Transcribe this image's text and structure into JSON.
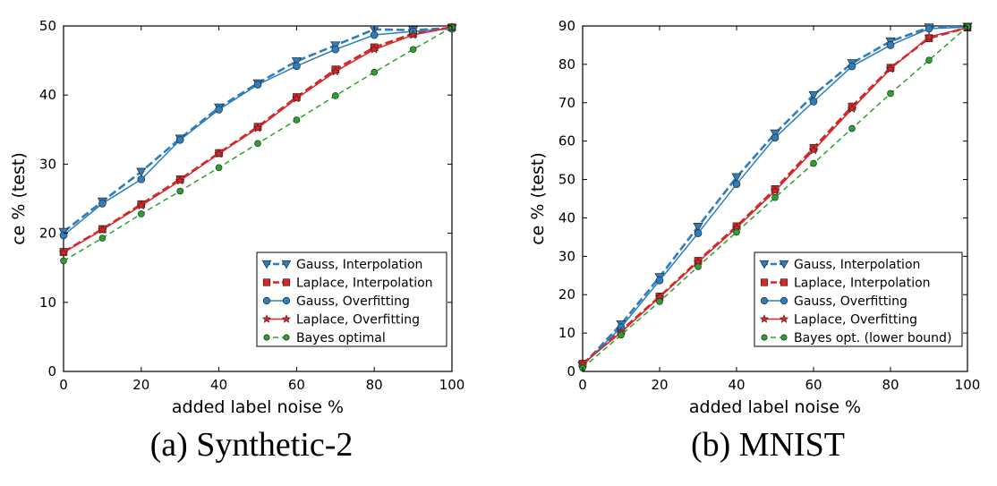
{
  "chart_data": [
    {
      "type": "line",
      "xlabel": "added label noise %",
      "ylabel": "ce % (test)",
      "caption": "(a) Synthetic-2",
      "xlim": [
        0,
        100
      ],
      "ylim": [
        0,
        50
      ],
      "xticks": [
        "0",
        "20",
        "40",
        "60",
        "80",
        "100"
      ],
      "yticks": [
        "0",
        "10",
        "20",
        "30",
        "40",
        "50"
      ],
      "grid": false,
      "legend_position": "lower-right",
      "x": [
        0,
        10,
        20,
        30,
        40,
        50,
        60,
        70,
        80,
        90,
        100
      ],
      "series": [
        {
          "name": "Gauss, Interpolation",
          "color": "#2f7ebc",
          "marker": "triangle-down",
          "dash": "dashed",
          "values": [
            20.2,
            24.6,
            28.9,
            33.7,
            38.2,
            41.7,
            44.9,
            47.2,
            49.5,
            49.4,
            49.7
          ]
        },
        {
          "name": "Laplace, Interpolation",
          "color": "#d62728",
          "marker": "square",
          "dash": "dashed",
          "values": [
            17.3,
            20.6,
            24.2,
            27.8,
            31.6,
            35.4,
            39.7,
            43.7,
            46.9,
            48.9,
            49.8
          ]
        },
        {
          "name": "Gauss, Overfitting",
          "color": "#2f7ebc",
          "marker": "circle",
          "dash": "solid",
          "values": [
            19.7,
            24.3,
            27.8,
            33.5,
            37.9,
            41.5,
            44.2,
            46.6,
            48.7,
            49.2,
            49.6
          ]
        },
        {
          "name": "Laplace, Overfitting",
          "color": "#d62728",
          "marker": "star",
          "dash": "solid",
          "values": [
            17.2,
            20.5,
            24.0,
            27.6,
            31.5,
            35.2,
            39.5,
            43.4,
            46.6,
            48.7,
            49.8
          ]
        },
        {
          "name": "Bayes optimal",
          "color": "#2ca02c",
          "marker": "circle",
          "dash": "dashed",
          "values": [
            16.0,
            19.3,
            22.8,
            26.1,
            29.5,
            33.0,
            36.4,
            39.9,
            43.3,
            46.6,
            49.8
          ]
        }
      ]
    },
    {
      "type": "line",
      "xlabel": "added label noise %",
      "ylabel": "ce % (test)",
      "caption": "(b) MNIST",
      "xlim": [
        0,
        100
      ],
      "ylim": [
        0,
        90
      ],
      "xticks": [
        "0",
        "20",
        "40",
        "60",
        "80",
        "100"
      ],
      "yticks": [
        "0",
        "10",
        "20",
        "30",
        "40",
        "50",
        "60",
        "70",
        "80",
        "90"
      ],
      "grid": false,
      "legend_position": "lower-right",
      "x": [
        0,
        10,
        20,
        30,
        40,
        50,
        60,
        70,
        80,
        90,
        100
      ],
      "series": [
        {
          "name": "Gauss, Interpolation",
          "color": "#2f7ebc",
          "marker": "triangle-down",
          "dash": "dashed",
          "values": [
            1.6,
            12.3,
            24.6,
            37.7,
            50.6,
            62.0,
            72.0,
            80.3,
            86.0,
            89.6,
            89.8
          ]
        },
        {
          "name": "Laplace, Interpolation",
          "color": "#d62728",
          "marker": "square",
          "dash": "dashed",
          "values": [
            2.0,
            10.6,
            19.5,
            28.8,
            37.8,
            47.5,
            58.2,
            69.0,
            79.1,
            86.8,
            89.6
          ]
        },
        {
          "name": "Gauss, Overfitting",
          "color": "#2f7ebc",
          "marker": "circle",
          "dash": "solid",
          "values": [
            1.5,
            11.5,
            23.7,
            36.0,
            48.8,
            60.9,
            70.3,
            79.5,
            85.0,
            89.3,
            89.7
          ]
        },
        {
          "name": "Laplace, Overfitting",
          "color": "#d62728",
          "marker": "star",
          "dash": "solid",
          "values": [
            1.9,
            10.2,
            19.3,
            28.5,
            37.4,
            47.0,
            57.6,
            68.4,
            78.8,
            87.2,
            89.5
          ]
        },
        {
          "name": "Bayes opt. (lower bound)",
          "color": "#2ca02c",
          "marker": "circle",
          "dash": "dashed",
          "values": [
            0.9,
            9.5,
            18.2,
            27.3,
            36.3,
            45.3,
            54.2,
            63.3,
            72.4,
            81.1,
            89.8
          ]
        }
      ]
    }
  ]
}
